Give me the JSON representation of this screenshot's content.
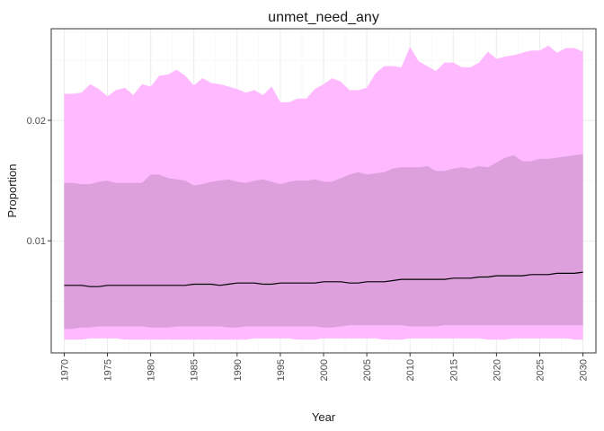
{
  "chart_data": {
    "type": "area",
    "title": "unmet_need_any",
    "xlabel": "Year",
    "ylabel": "Proportion",
    "xlim": [
      1968.5,
      2031.5
    ],
    "ylim": [
      0.0007,
      0.0276
    ],
    "x_ticks": [
      1970,
      1975,
      1980,
      1985,
      1990,
      1995,
      2000,
      2005,
      2010,
      2015,
      2020,
      2025,
      2030
    ],
    "y_ticks": [
      0.01,
      0.02
    ],
    "y_tick_labels": [
      "0.01",
      "0.02"
    ],
    "grid": true,
    "legend": "none",
    "colors": {
      "outer_band": "#ffbaff",
      "inner_band": "#dda0dd",
      "median_line": "#000000",
      "panel_border": "#333333",
      "grid_major": "#ebebeb",
      "grid_minor": "#f5f5f5"
    },
    "x": [
      1970,
      1971,
      1972,
      1973,
      1974,
      1975,
      1976,
      1977,
      1978,
      1979,
      1980,
      1981,
      1982,
      1983,
      1984,
      1985,
      1986,
      1987,
      1988,
      1989,
      1990,
      1991,
      1992,
      1993,
      1994,
      1995,
      1996,
      1997,
      1998,
      1999,
      2000,
      2001,
      2002,
      2003,
      2004,
      2005,
      2006,
      2007,
      2008,
      2009,
      2010,
      2011,
      2012,
      2013,
      2014,
      2015,
      2016,
      2017,
      2018,
      2019,
      2020,
      2021,
      2022,
      2023,
      2024,
      2025,
      2026,
      2027,
      2028,
      2029,
      2030
    ],
    "series": [
      {
        "role": "outer_upper",
        "values": [
          0.0222,
          0.0222,
          0.0223,
          0.023,
          0.0226,
          0.022,
          0.0225,
          0.0227,
          0.0221,
          0.023,
          0.0228,
          0.0237,
          0.0238,
          0.0242,
          0.0237,
          0.0229,
          0.0235,
          0.0231,
          0.023,
          0.0228,
          0.0226,
          0.0223,
          0.0225,
          0.0221,
          0.0228,
          0.0215,
          0.0215,
          0.0218,
          0.0218,
          0.0226,
          0.023,
          0.0235,
          0.0232,
          0.0225,
          0.0225,
          0.0227,
          0.0239,
          0.0245,
          0.0245,
          0.0244,
          0.0261,
          0.0249,
          0.0245,
          0.0241,
          0.0248,
          0.0248,
          0.0244,
          0.0244,
          0.0248,
          0.0257,
          0.0251,
          0.0253,
          0.0254,
          0.0256,
          0.0258,
          0.0258,
          0.0262,
          0.0256,
          0.026,
          0.026,
          0.0257
        ]
      },
      {
        "role": "inner_upper",
        "values": [
          0.0148,
          0.0148,
          0.0147,
          0.0147,
          0.0149,
          0.015,
          0.0148,
          0.0148,
          0.0148,
          0.0148,
          0.0155,
          0.0155,
          0.0152,
          0.0151,
          0.015,
          0.0146,
          0.0147,
          0.0149,
          0.015,
          0.0151,
          0.0149,
          0.0148,
          0.015,
          0.0151,
          0.0149,
          0.0147,
          0.0149,
          0.015,
          0.015,
          0.0151,
          0.0149,
          0.0149,
          0.0152,
          0.0155,
          0.0157,
          0.0155,
          0.0156,
          0.0157,
          0.016,
          0.0161,
          0.0161,
          0.0161,
          0.0162,
          0.0158,
          0.0158,
          0.016,
          0.0161,
          0.016,
          0.0162,
          0.0161,
          0.0165,
          0.0169,
          0.0171,
          0.0166,
          0.0166,
          0.0168,
          0.0168,
          0.0169,
          0.017,
          0.0171,
          0.0172
        ]
      },
      {
        "role": "median",
        "values": [
          0.0063,
          0.0063,
          0.0063,
          0.0062,
          0.0062,
          0.0063,
          0.0063,
          0.0063,
          0.0063,
          0.0063,
          0.0063,
          0.0063,
          0.0063,
          0.0063,
          0.0063,
          0.0064,
          0.0064,
          0.0064,
          0.0063,
          0.0064,
          0.0065,
          0.0065,
          0.0065,
          0.0064,
          0.0064,
          0.0065,
          0.0065,
          0.0065,
          0.0065,
          0.0065,
          0.0066,
          0.0066,
          0.0066,
          0.0065,
          0.0065,
          0.0066,
          0.0066,
          0.0066,
          0.0067,
          0.0068,
          0.0068,
          0.0068,
          0.0068,
          0.0068,
          0.0068,
          0.0069,
          0.0069,
          0.0069,
          0.007,
          0.007,
          0.0071,
          0.0071,
          0.0071,
          0.0071,
          0.0072,
          0.0072,
          0.0072,
          0.0073,
          0.0073,
          0.0073,
          0.0074
        ]
      },
      {
        "role": "inner_lower",
        "values": [
          0.0027,
          0.0027,
          0.0028,
          0.0028,
          0.0029,
          0.0029,
          0.0029,
          0.0029,
          0.0029,
          0.0029,
          0.0028,
          0.0028,
          0.0028,
          0.0029,
          0.0029,
          0.0029,
          0.0029,
          0.0029,
          0.0029,
          0.0028,
          0.0028,
          0.0029,
          0.0029,
          0.0029,
          0.0029,
          0.0029,
          0.0029,
          0.0029,
          0.0029,
          0.0029,
          0.0028,
          0.0028,
          0.0029,
          0.003,
          0.003,
          0.003,
          0.003,
          0.003,
          0.003,
          0.003,
          0.0029,
          0.0029,
          0.0029,
          0.0029,
          0.003,
          0.003,
          0.003,
          0.003,
          0.003,
          0.003,
          0.003,
          0.003,
          0.003,
          0.003,
          0.003,
          0.003,
          0.003,
          0.003,
          0.003,
          0.003,
          0.003
        ]
      },
      {
        "role": "outer_lower",
        "values": [
          0.0018,
          0.0018,
          0.0018,
          0.0019,
          0.0019,
          0.0019,
          0.0019,
          0.0018,
          0.0018,
          0.0018,
          0.0018,
          0.0018,
          0.0018,
          0.0018,
          0.0018,
          0.0018,
          0.0018,
          0.0018,
          0.0018,
          0.0018,
          0.0018,
          0.0018,
          0.0019,
          0.0019,
          0.0019,
          0.0019,
          0.0019,
          0.0018,
          0.0018,
          0.0018,
          0.0019,
          0.0019,
          0.0019,
          0.0019,
          0.0019,
          0.0019,
          0.0019,
          0.0018,
          0.0018,
          0.0018,
          0.0019,
          0.0019,
          0.0019,
          0.0019,
          0.0019,
          0.0019,
          0.0019,
          0.0019,
          0.0019,
          0.0018,
          0.0018,
          0.0018,
          0.0019,
          0.0019,
          0.0019,
          0.0019,
          0.0019,
          0.0019,
          0.0019,
          0.0018,
          0.0018
        ]
      }
    ]
  }
}
